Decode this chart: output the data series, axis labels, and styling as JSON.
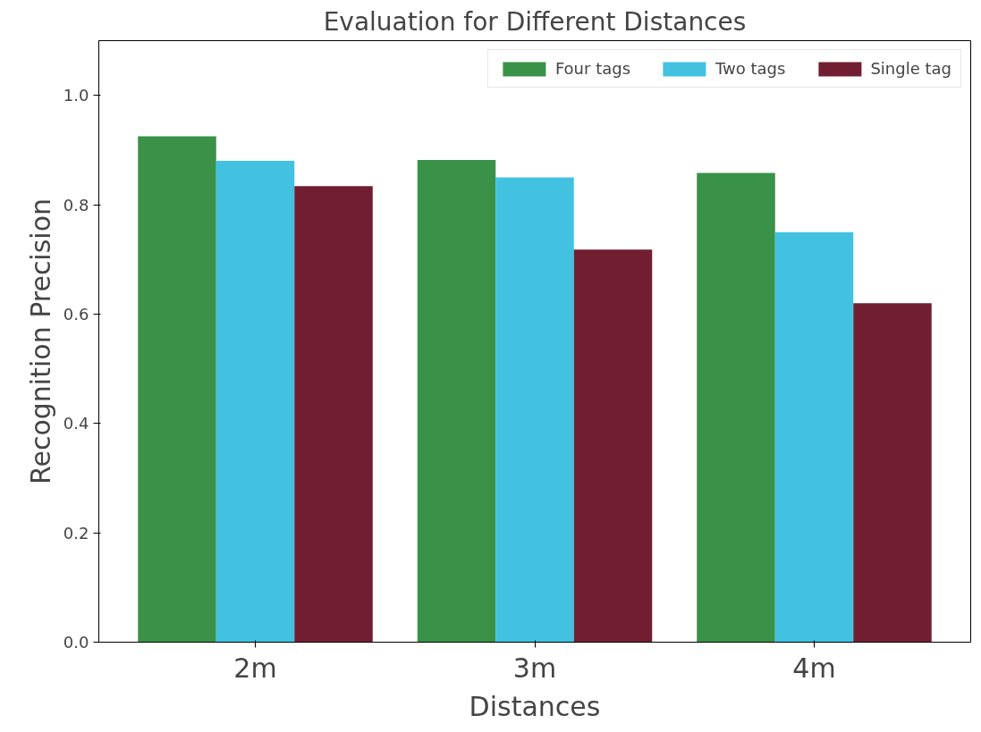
{
  "chart_data": {
    "type": "bar",
    "title": "Evaluation for Different Distances",
    "xlabel": "Distances",
    "ylabel": "Recognition Precision",
    "categories": [
      "2m",
      "3m",
      "4m"
    ],
    "series": [
      {
        "name": "Four tags",
        "color": "#3a9148",
        "values": [
          0.925,
          0.882,
          0.858
        ]
      },
      {
        "name": "Two tags",
        "color": "#42c2e0",
        "values": [
          0.88,
          0.85,
          0.75
        ]
      },
      {
        "name": "Single tag",
        "color": "#711e32",
        "values": [
          0.834,
          0.718,
          0.62
        ]
      }
    ],
    "ylim": [
      0,
      1.1
    ],
    "yticks": [
      {
        "value": 0,
        "label": "0.0"
      },
      {
        "value": 0.2,
        "label": "0.2"
      },
      {
        "value": 0.4,
        "label": "0.4"
      },
      {
        "value": 0.6,
        "label": "0.6"
      },
      {
        "value": 0.8,
        "label": "0.8"
      },
      {
        "value": 1.0,
        "label": "1.0"
      }
    ],
    "grid": false,
    "legend": "top right"
  }
}
